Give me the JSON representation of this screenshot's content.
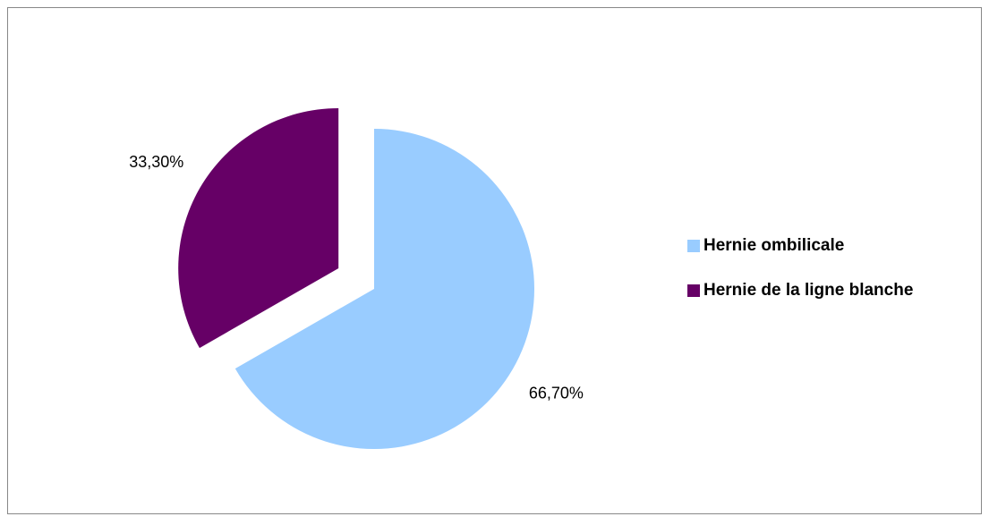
{
  "chart_data": {
    "type": "pie",
    "categories": [
      "Hernie ombilicale",
      "Hernie de la ligne blanche"
    ],
    "values": [
      66.7,
      33.3
    ],
    "value_labels": [
      "66,70%",
      "33,30%"
    ],
    "colors": [
      "#99ccff",
      "#660066"
    ],
    "legend": "right"
  }
}
